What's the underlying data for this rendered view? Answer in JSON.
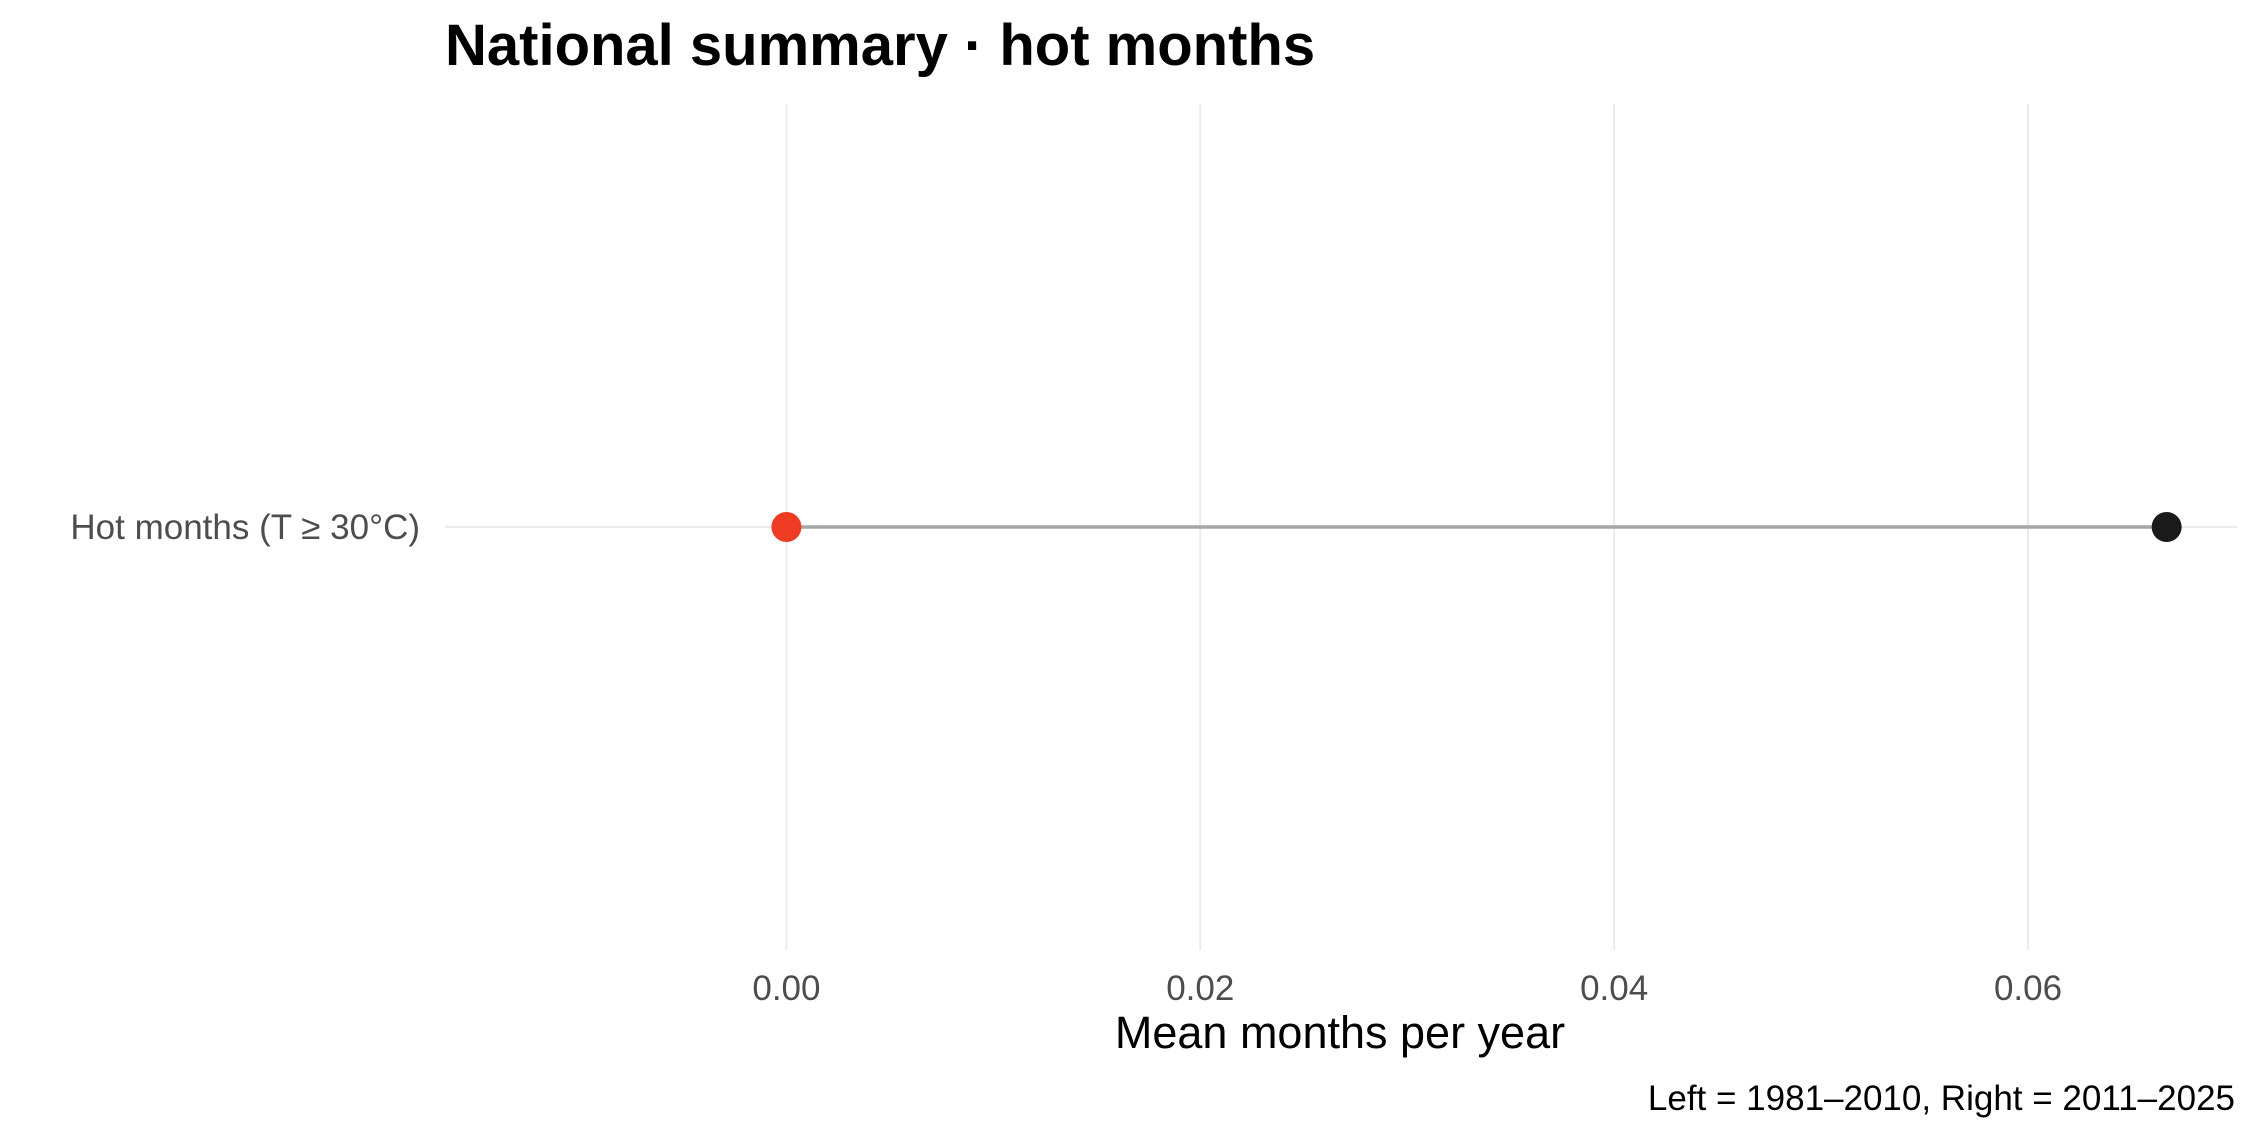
{
  "chart_data": {
    "type": "dumbbell",
    "title": "National summary · hot months",
    "xlabel": "Mean months per year",
    "ylabel": "",
    "caption": "Left = 1981–2010, Right = 2011–2025",
    "categories": [
      "Hot months (T ≥ 30°C)"
    ],
    "series": [
      {
        "values": [
          0.0
        ],
        "color": "#ee3b24"
      },
      {
        "values": [
          0.0667
        ],
        "color": "#1a1a1a"
      }
    ],
    "xlim": [
      -0.0165,
      0.0701
    ],
    "xticks": [
      0.0,
      0.02,
      0.04,
      0.06
    ],
    "xtick_labels": [
      "0.00",
      "0.02",
      "0.04",
      "0.06"
    ],
    "grid": true,
    "legend": "none",
    "connector_color": "#a6a6a6",
    "gridline_color": "#ebebeb"
  }
}
